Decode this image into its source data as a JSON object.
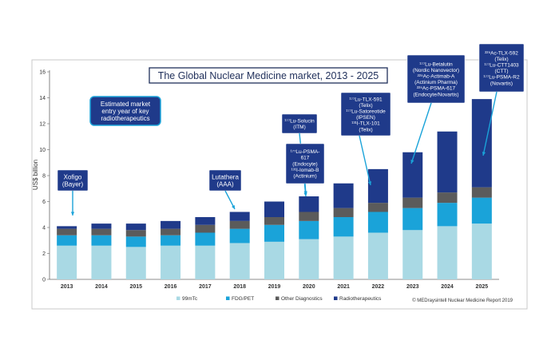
{
  "chart_data": {
    "type": "bar",
    "stacked": true,
    "title": "The Global Nuclear Medicine market, 2013 - 2025",
    "ylabel": "US$ billion",
    "ylim": [
      0,
      16
    ],
    "yticks": [
      0,
      2,
      4,
      6,
      8,
      10,
      12,
      14,
      16
    ],
    "grid": false,
    "categories": [
      "2013",
      "2014",
      "2015",
      "2016",
      "2017",
      "2018",
      "2019",
      "2020",
      "2021",
      "2022",
      "2023",
      "2024",
      "2025"
    ],
    "series": [
      {
        "name": "99mTc",
        "color": "#a9d9e4",
        "values": [
          2.6,
          2.6,
          2.5,
          2.6,
          2.6,
          2.8,
          2.9,
          3.1,
          3.3,
          3.6,
          3.8,
          4.1,
          4.3
        ]
      },
      {
        "name": "FDG/PET",
        "color": "#1aa3d9",
        "values": [
          0.8,
          0.8,
          0.8,
          0.8,
          1.0,
          1.1,
          1.3,
          1.4,
          1.5,
          1.6,
          1.7,
          1.8,
          2.0
        ]
      },
      {
        "name": "Other Diagnostics",
        "color": "#5b5b5b",
        "values": [
          0.5,
          0.5,
          0.5,
          0.5,
          0.6,
          0.6,
          0.6,
          0.7,
          0.7,
          0.7,
          0.8,
          0.8,
          0.8
        ]
      },
      {
        "name": "Radiotherapeutics",
        "color": "#1f3a8a",
        "values": [
          0.2,
          0.4,
          0.5,
          0.6,
          0.6,
          0.7,
          1.2,
          1.2,
          1.9,
          2.6,
          3.5,
          4.7,
          6.8
        ]
      }
    ],
    "legend_position": "bottom",
    "source": "© MEDraysintell Nuclear Medicine Report 2019",
    "annotations": [
      {
        "id": "legend-box",
        "text": [
          "Estimated market",
          "entry year of key",
          "radiotherapeutics"
        ]
      },
      {
        "id": "xofigo",
        "category": "2013",
        "text": [
          "Xofigo",
          "(Bayer)"
        ]
      },
      {
        "id": "lutathera",
        "category": "2018",
        "text": [
          "Lutathera",
          "(AAA)"
        ]
      },
      {
        "id": "lu-solucin",
        "category": "2021",
        "text": [
          "¹⁷⁷Lu-Solucin",
          "(ITM)"
        ]
      },
      {
        "id": "lu-psma-617",
        "category": "2022",
        "text": [
          "¹⁷⁷Lu-PSMA-",
          "617",
          "(Endocyte)",
          "¹³¹I-Iomab-B",
          "(Actinium)"
        ]
      },
      {
        "id": "lu-tlx-591",
        "category": "2023",
        "text": [
          "¹⁷⁷Lu-TLX-591",
          "(Telix)",
          "¹⁷⁷Lu-Satoreotide",
          "(IPSEN)",
          "¹³¹I-TLX-101",
          "(Telix)"
        ]
      },
      {
        "id": "lu-betalutin",
        "category": "2024",
        "text": [
          "¹⁷⁷Lu-Betalutin",
          "(Nordic Nanovector)",
          "²²⁵Ac-Actimab-A",
          "(Actinium Pharma)",
          "²²⁵Ac-PSMA-617",
          "(Endocyte/Novartis)"
        ]
      },
      {
        "id": "ac-tlx-592",
        "category": "2025",
        "text": [
          "²²⁵Ac-TLX-592",
          "(Telix)",
          "¹⁷⁷Lu-CTT1403",
          "(CTT)",
          "¹⁷⁷Lu-PSMA-R2",
          "(Novartis)"
        ]
      }
    ]
  }
}
